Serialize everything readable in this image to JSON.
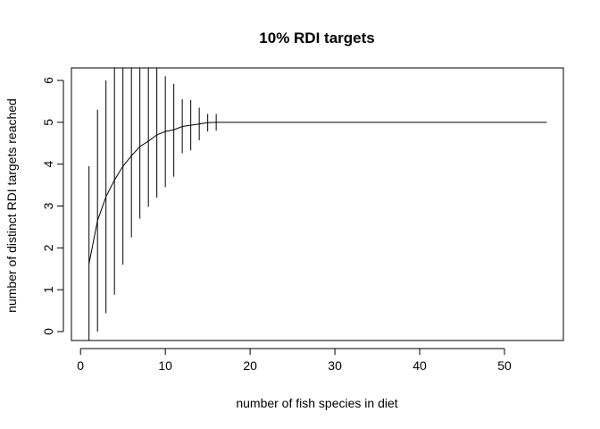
{
  "chart_data": {
    "type": "line",
    "title": "10% RDI targets",
    "xlabel": "number of fish species in diet",
    "ylabel": "number of distinct RDI targets reached",
    "xlim": [
      0,
      57
    ],
    "ylim": [
      0,
      6.3
    ],
    "x_ticks": [
      0,
      10,
      20,
      30,
      40,
      50
    ],
    "y_ticks": [
      0,
      1,
      2,
      3,
      4,
      5,
      6
    ],
    "grid": false,
    "x": [
      1,
      2,
      3,
      4,
      5,
      6,
      7,
      8,
      9,
      10,
      11,
      12,
      13,
      14,
      15,
      16,
      17,
      18,
      19,
      20,
      21,
      22,
      23,
      24,
      25,
      26,
      27,
      28,
      29,
      30,
      31,
      32,
      33,
      34,
      35,
      36,
      37,
      38,
      39,
      40,
      41,
      42,
      43,
      44,
      45,
      46,
      47,
      48,
      49,
      50,
      51,
      52,
      53,
      54,
      55
    ],
    "series": [
      {
        "values": [
          1.62,
          2.65,
          3.22,
          3.62,
          3.95,
          4.2,
          4.42,
          4.55,
          4.7,
          4.78,
          4.82,
          4.9,
          4.93,
          4.96,
          4.99,
          5.0,
          5.0,
          5.0,
          5.0,
          5.0,
          5.0,
          5.0,
          5.0,
          5.0,
          5.0,
          5.0,
          5.0,
          5.0,
          5.0,
          5.0,
          5.0,
          5.0,
          5.0,
          5.0,
          5.0,
          5.0,
          5.0,
          5.0,
          5.0,
          5.0,
          5.0,
          5.0,
          5.0,
          5.0,
          5.0,
          5.0,
          5.0,
          5.0,
          5.0,
          5.0,
          5.0,
          5.0,
          5.0,
          5.0,
          5.0
        ],
        "lower": [
          -0.7,
          0.0,
          0.44,
          0.88,
          1.6,
          2.25,
          2.7,
          2.98,
          3.2,
          3.45,
          3.7,
          4.26,
          4.33,
          4.57,
          4.78,
          4.8,
          5.0,
          5.0,
          5.0,
          5.0,
          5.0,
          5.0,
          5.0,
          5.0,
          5.0,
          5.0,
          5.0,
          5.0,
          5.0,
          5.0,
          5.0,
          5.0,
          5.0,
          5.0,
          5.0,
          5.0,
          5.0,
          5.0,
          5.0,
          5.0,
          5.0,
          5.0,
          5.0,
          5.0,
          5.0,
          5.0,
          5.0,
          5.0,
          5.0,
          5.0,
          5.0,
          5.0,
          5.0,
          5.0,
          5.0
        ],
        "upper": [
          3.95,
          5.3,
          6.0,
          6.3,
          6.3,
          6.3,
          6.3,
          6.3,
          6.3,
          6.1,
          5.92,
          5.55,
          5.53,
          5.35,
          5.2,
          5.2,
          5.0,
          5.0,
          5.0,
          5.0,
          5.0,
          5.0,
          5.0,
          5.0,
          5.0,
          5.0,
          5.0,
          5.0,
          5.0,
          5.0,
          5.0,
          5.0,
          5.0,
          5.0,
          5.0,
          5.0,
          5.0,
          5.0,
          5.0,
          5.0,
          5.0,
          5.0,
          5.0,
          5.0,
          5.0,
          5.0,
          5.0,
          5.0,
          5.0,
          5.0,
          5.0,
          5.0,
          5.0,
          5.0,
          5.0
        ]
      }
    ]
  }
}
